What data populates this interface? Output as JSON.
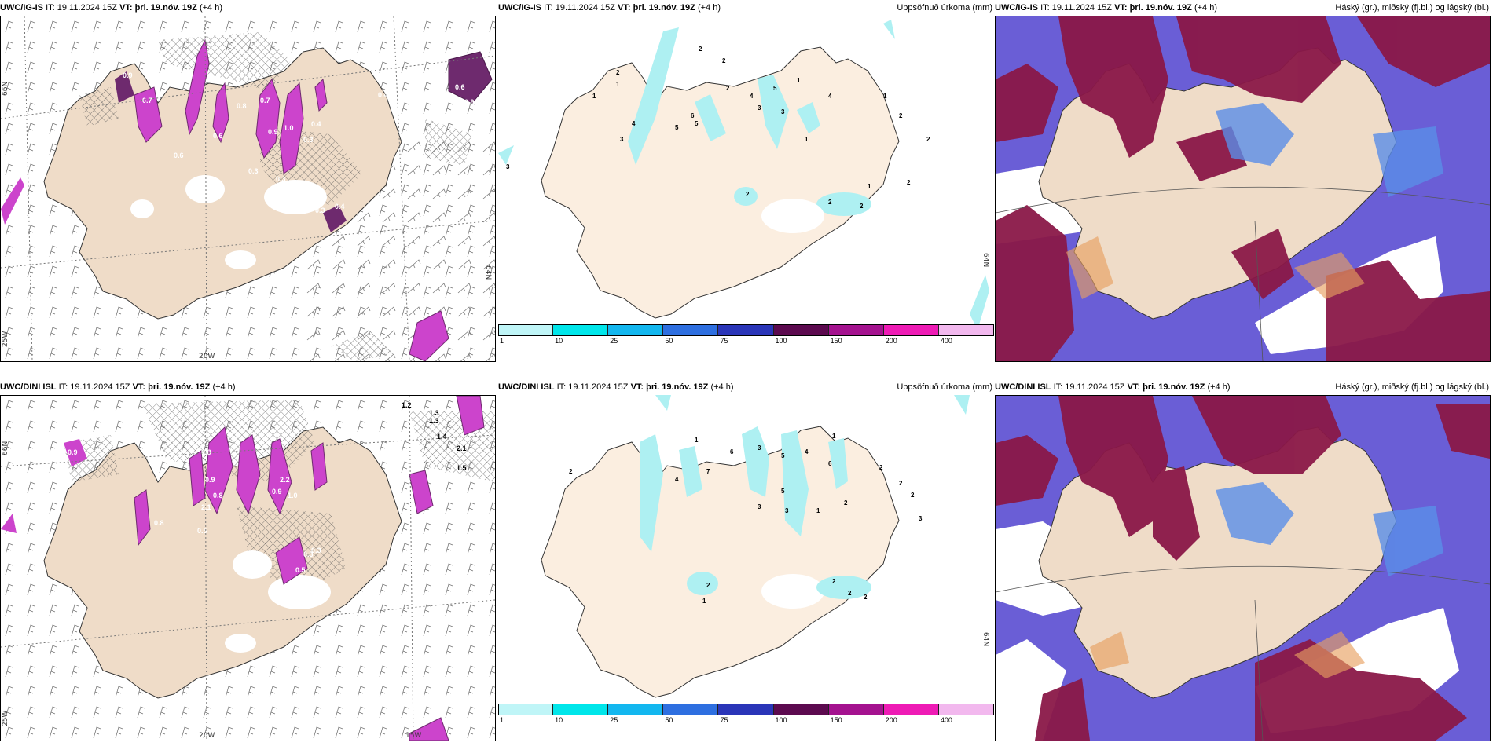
{
  "panels": [
    {
      "model": "UWC/IG-IS",
      "it_label": "IT:",
      "it_value": "19.11.2024 15Z",
      "vt_label": "VT:",
      "vt_value": "þri. 19.nóv. 19Z",
      "lead": "(+4 h)",
      "right_title": ""
    },
    {
      "model": "UWC/IG-IS",
      "it_label": "IT:",
      "it_value": "19.11.2024 15Z",
      "vt_label": "VT:",
      "vt_value": "þri. 19.nóv. 19Z",
      "lead": "(+4 h)",
      "right_title": "Uppsöfnuð úrkoma (mm)"
    },
    {
      "model": "UWC/IG-IS",
      "it_label": "IT:",
      "it_value": "19.11.2024 15Z",
      "vt_label": "VT:",
      "vt_value": "þri. 19.nóv. 19Z",
      "lead": "(+4 h)",
      "right_title": "Háský (gr.), miðský (fj.bl.) og lágský (bl.)"
    },
    {
      "model": "UWC/DINI ISL",
      "it_label": "IT:",
      "it_value": "19.11.2024 15Z",
      "vt_label": "VT:",
      "vt_value": "þri. 19.nóv. 19Z",
      "lead": "(+4 h)",
      "right_title": ""
    },
    {
      "model": "UWC/DINI ISL",
      "it_label": "IT:",
      "it_value": "19.11.2024 15Z",
      "vt_label": "VT:",
      "vt_value": "þri. 19.nóv. 19Z",
      "lead": "(+4 h)",
      "right_title": "Uppsöfnuð úrkoma (mm)"
    },
    {
      "model": "UWC/DINI ISL",
      "it_label": "IT:",
      "it_value": "19.11.2024 15Z",
      "vt_label": "VT:",
      "vt_value": "þri. 19.nóv. 19Z",
      "lead": "(+4 h)",
      "right_title": "Háský (gr.), miðský (fj.bl.) og lágský (bl.)"
    }
  ],
  "grid_labels": {
    "lat66": "66N",
    "lat64": "64N",
    "lon20": "20W",
    "lon25": "25W",
    "lon15": "15W"
  },
  "precip_colorbar": {
    "ticks": [
      "1",
      "10",
      "25",
      "50",
      "75",
      "100",
      "150",
      "200",
      "400"
    ],
    "colors": [
      "#bff5f7",
      "#00e6ea",
      "#13b7ef",
      "#2e6fe0",
      "#2a35b8",
      "#5c0a4f",
      "#a4128f",
      "#ee1bb5",
      "#f2b8ee"
    ]
  },
  "colors": {
    "land": "#efdcc8",
    "land_precip": "#fbeee0",
    "precip_light": "#aef0f2",
    "cloud_low": "#6a5ed6",
    "cloud_mid": "#5a8ee8",
    "cloud_high": "#8a1848",
    "convective": "#cc44cc",
    "convective_dark": "#6e2a6e"
  },
  "map_values": {
    "top_left": [
      "0.9",
      "0.6",
      "0.7",
      "0.9",
      "1.0",
      "0.4",
      "0.4",
      "0.6",
      "0.9",
      "0.4",
      "0.3",
      "0.4",
      "0.7",
      "0.3",
      "0.4",
      "0.6",
      "0.8",
      "0.4",
      "0.3",
      "0.3",
      "0.5"
    ],
    "top_mid": [
      "2",
      "2",
      "2",
      "1",
      "1",
      "3",
      "4",
      "5",
      "6",
      "5",
      "2",
      "3",
      "4",
      "5",
      "3",
      "1",
      "1",
      "4",
      "1",
      "2",
      "2",
      "2",
      "1",
      "2",
      "2",
      "3",
      "2"
    ],
    "bot_left": [
      "0.9",
      "0.8",
      "1.2",
      "1.3",
      "1.3",
      "1.4",
      "2.1",
      "1.5",
      "2.2",
      "0.9",
      "1.0",
      "0.8",
      "2.1",
      "0.9",
      "0.5",
      "0.3",
      "0.5",
      "0.3",
      "0.8"
    ],
    "bot_mid": [
      "2",
      "1",
      "4",
      "7",
      "6",
      "3",
      "5",
      "4",
      "1",
      "6",
      "2",
      "1",
      "3",
      "5",
      "3",
      "2",
      "2",
      "2",
      "2",
      "1",
      "2",
      "2",
      "2",
      "3"
    ]
  }
}
